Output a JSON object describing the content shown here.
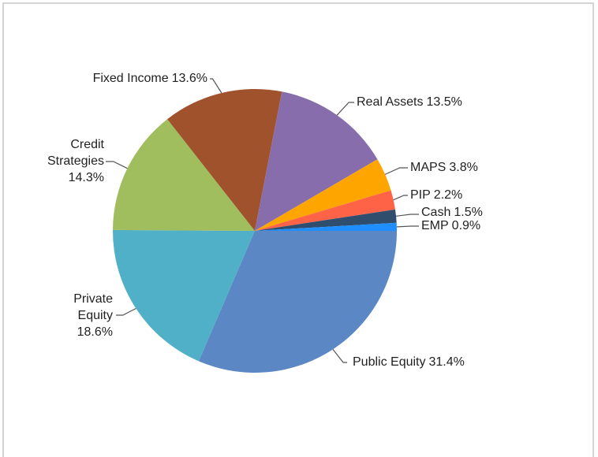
{
  "chart_data": {
    "type": "pie",
    "categories": [
      "Public Equity",
      "Private Equity",
      "Credit Strategies",
      "Fixed Income",
      "Real Assets",
      "MAPS",
      "PIP",
      "Cash",
      "EMP"
    ],
    "values": [
      31.4,
      18.6,
      14.3,
      13.6,
      13.5,
      3.8,
      2.2,
      1.5,
      0.9
    ],
    "value_labels": [
      "31.4%",
      "18.6%",
      "14.3%",
      "13.6%",
      "13.5%",
      "3.8%",
      "2.2%",
      "1.5%",
      "0.9%"
    ],
    "colors": [
      "#5b87c4",
      "#50b0c8",
      "#a0be5e",
      "#a0522d",
      "#876dac",
      "#ffa500",
      "#fe6347",
      "#2f4e6e",
      "#1f8fff"
    ]
  }
}
